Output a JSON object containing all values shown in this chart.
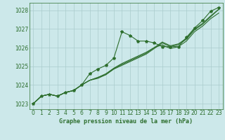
{
  "background_color": "#cce8ea",
  "grid_color": "#aacccc",
  "line_color": "#2d6e2d",
  "marker_color": "#2d6e2d",
  "xlabel": "Graphe pression niveau de la mer (hPa)",
  "xlim": [
    -0.5,
    23.5
  ],
  "ylim": [
    1022.7,
    1028.4
  ],
  "yticks": [
    1023,
    1024,
    1025,
    1026,
    1027,
    1028
  ],
  "xticks": [
    0,
    1,
    2,
    3,
    4,
    5,
    6,
    7,
    8,
    9,
    10,
    11,
    12,
    13,
    14,
    15,
    16,
    17,
    18,
    19,
    20,
    21,
    22,
    23
  ],
  "series": [
    [
      1023.0,
      1023.4,
      1023.5,
      1023.4,
      1023.6,
      1023.7,
      1024.0,
      1024.6,
      1024.85,
      1025.05,
      1025.45,
      1026.85,
      1026.65,
      1026.35,
      1026.35,
      1026.25,
      1026.05,
      1026.05,
      1026.05,
      1026.55,
      1027.05,
      1027.45,
      1027.95,
      1028.15
    ],
    [
      1023.0,
      1023.4,
      1023.5,
      1023.4,
      1023.6,
      1023.7,
      1024.0,
      1024.25,
      1024.4,
      1024.6,
      1024.9,
      1025.15,
      1025.35,
      1025.55,
      1025.75,
      1026.0,
      1026.15,
      1025.95,
      1026.05,
      1026.35,
      1026.85,
      1027.15,
      1027.55,
      1027.85
    ],
    [
      1023.0,
      1023.4,
      1023.5,
      1023.4,
      1023.6,
      1023.7,
      1024.0,
      1024.25,
      1024.35,
      1024.55,
      1024.85,
      1025.05,
      1025.25,
      1025.45,
      1025.65,
      1025.95,
      1026.25,
      1026.05,
      1026.15,
      1026.45,
      1026.95,
      1027.25,
      1027.65,
      1028.05
    ],
    [
      1023.0,
      1023.4,
      1023.5,
      1023.4,
      1023.6,
      1023.7,
      1024.0,
      1024.25,
      1024.4,
      1024.55,
      1024.88,
      1025.1,
      1025.3,
      1025.5,
      1025.7,
      1026.0,
      1026.3,
      1026.1,
      1026.2,
      1026.5,
      1027.0,
      1027.3,
      1027.7,
      1028.05
    ]
  ],
  "marker_size": 3.0,
  "line_width": 0.8,
  "tick_fontsize": 5.5,
  "xlabel_fontsize": 6.0
}
